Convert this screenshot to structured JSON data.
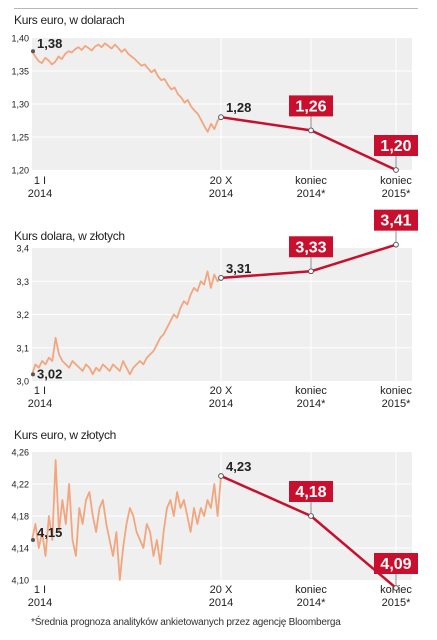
{
  "footnote": "*Średnia prognoza analityków ankietowanych przez agencję Bloomberga",
  "colors": {
    "history_line": "#f2a67f",
    "forecast_line": "#c8102e",
    "forecast_label_bg": "#c8102e",
    "forecast_label_text": "#ffffff",
    "plot_background": "#efefef",
    "grid": "#ffffff",
    "text": "#222222"
  },
  "chart_data": [
    {
      "type": "line",
      "title": "Kurs euro, w dolarach",
      "ylim": [
        1.2,
        1.4
      ],
      "yticks": [
        "1,40",
        "1,35",
        "1,30",
        "1,25",
        "1,20"
      ],
      "ytick_values": [
        1.4,
        1.35,
        1.3,
        1.25,
        1.2
      ],
      "x_categories": [
        {
          "line1": "1 I",
          "line2": "2014"
        },
        {
          "line1": "20 X",
          "line2": "2014"
        },
        {
          "line1": "koniec",
          "line2": "2014*"
        },
        {
          "line1": "koniec",
          "line2": "2015*"
        }
      ],
      "history": [
        1.38,
        1.372,
        1.365,
        1.362,
        1.37,
        1.366,
        1.36,
        1.364,
        1.372,
        1.368,
        1.376,
        1.38,
        1.378,
        1.383,
        1.386,
        1.382,
        1.388,
        1.385,
        1.381,
        1.387,
        1.39,
        1.386,
        1.392,
        1.388,
        1.384,
        1.39,
        1.385,
        1.379,
        1.383,
        1.376,
        1.372,
        1.368,
        1.363,
        1.358,
        1.36,
        1.354,
        1.348,
        1.352,
        1.342,
        1.336,
        1.338,
        1.329,
        1.322,
        1.325,
        1.315,
        1.31,
        1.302,
        1.306,
        1.296,
        1.29,
        1.285,
        1.276,
        1.266,
        1.258,
        1.27,
        1.262,
        1.275,
        1.28
      ],
      "forecast": [
        {
          "label": "1,28",
          "value": 1.28,
          "highlight": false
        },
        {
          "label": "1,26",
          "value": 1.26,
          "highlight": true
        },
        {
          "label": "1,20",
          "value": 1.2,
          "highlight": true
        }
      ],
      "start_label": "1,38",
      "start_value": 1.38
    },
    {
      "type": "line",
      "title": "Kurs dolara, w złotych",
      "ylim": [
        3.0,
        3.4
      ],
      "yticks": [
        "3,4",
        "3,3",
        "3,2",
        "3,1",
        "3,0"
      ],
      "ytick_values": [
        3.4,
        3.3,
        3.2,
        3.1,
        3.0
      ],
      "x_categories": [
        {
          "line1": "1 I",
          "line2": "2014"
        },
        {
          "line1": "20 X",
          "line2": "2014"
        },
        {
          "line1": "koniec",
          "line2": "2014*"
        },
        {
          "line1": "koniec",
          "line2": "2015*"
        }
      ],
      "history": [
        3.02,
        3.05,
        3.04,
        3.06,
        3.05,
        3.07,
        3.06,
        3.13,
        3.08,
        3.06,
        3.05,
        3.04,
        3.06,
        3.05,
        3.04,
        3.03,
        3.05,
        3.04,
        3.02,
        3.04,
        3.03,
        3.05,
        3.04,
        3.03,
        3.05,
        3.04,
        3.03,
        3.06,
        3.04,
        3.02,
        3.04,
        3.05,
        3.06,
        3.05,
        3.07,
        3.08,
        3.09,
        3.11,
        3.13,
        3.14,
        3.16,
        3.18,
        3.2,
        3.19,
        3.22,
        3.24,
        3.23,
        3.26,
        3.28,
        3.27,
        3.3,
        3.29,
        3.33,
        3.28,
        3.32,
        3.3,
        3.31
      ],
      "forecast": [
        {
          "label": "3,31",
          "value": 3.31,
          "highlight": false
        },
        {
          "label": "3,33",
          "value": 3.33,
          "highlight": true
        },
        {
          "label": "3,41",
          "value": 3.41,
          "highlight": true
        }
      ],
      "start_label": "3,02",
      "start_value": 3.02
    },
    {
      "type": "line",
      "title": "Kurs euro, w złotych",
      "ylim": [
        4.1,
        4.26
      ],
      "yticks": [
        "4,26",
        "4,22",
        "4,18",
        "4,14",
        "4,10"
      ],
      "ytick_values": [
        4.26,
        4.22,
        4.18,
        4.14,
        4.1
      ],
      "x_categories": [
        {
          "line1": "1 I",
          "line2": "2014"
        },
        {
          "line1": "20 X",
          "line2": "2014"
        },
        {
          "line1": "koniec",
          "line2": "2014*"
        },
        {
          "line1": "koniec",
          "line2": "2015*"
        }
      ],
      "history": [
        4.15,
        4.17,
        4.14,
        4.16,
        4.13,
        4.18,
        4.15,
        4.25,
        4.16,
        4.2,
        4.17,
        4.22,
        4.15,
        4.13,
        4.19,
        4.17,
        4.2,
        4.21,
        4.18,
        4.16,
        4.19,
        4.2,
        4.17,
        4.15,
        4.13,
        4.16,
        4.1,
        4.14,
        4.17,
        4.19,
        4.18,
        4.16,
        4.15,
        4.14,
        4.17,
        4.16,
        4.13,
        4.15,
        4.12,
        4.16,
        4.19,
        4.2,
        4.18,
        4.21,
        4.19,
        4.2,
        4.18,
        4.16,
        4.19,
        4.17,
        4.19,
        4.18,
        4.2,
        4.19,
        4.22,
        4.18,
        4.23
      ],
      "forecast": [
        {
          "label": "4,23",
          "value": 4.23,
          "highlight": false
        },
        {
          "label": "4,18",
          "value": 4.18,
          "highlight": true
        },
        {
          "label": "4,09",
          "value": 4.09,
          "highlight": true
        }
      ],
      "start_label": "4,15",
      "start_value": 4.15
    }
  ]
}
